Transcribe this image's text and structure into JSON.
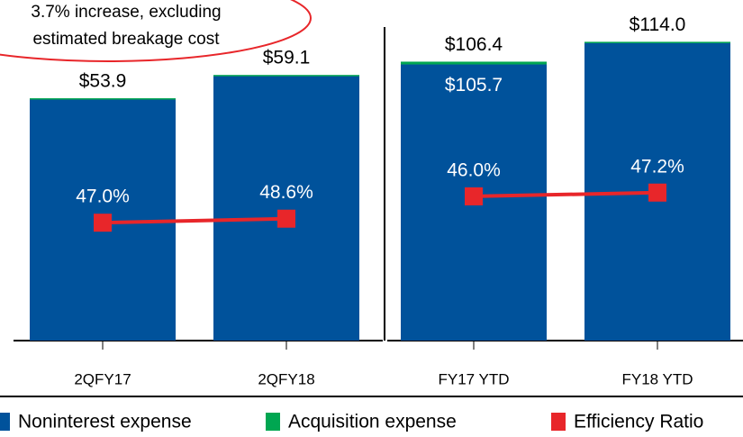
{
  "chart_data": {
    "type": "bar",
    "annotation": [
      "3.7% increase, excluding",
      "estimated breakage cost"
    ],
    "categories": [
      "2QFY17",
      "2QFY18",
      "FY17 YTD",
      "FY18 YTD"
    ],
    "series": [
      {
        "name": "Noninterest expense",
        "color": "#00529b",
        "values": [
          53.9,
          59.1,
          105.7,
          114.0
        ],
        "value_labels": [
          "$53.9",
          "$59.1",
          "$105.7",
          "$114.0"
        ]
      },
      {
        "name": "Acquisition expense",
        "color": "#00a651",
        "values": [
          0,
          0,
          0.7,
          0
        ]
      },
      {
        "name": "Efficiency Ratio",
        "color": "#e8262a",
        "type": "line",
        "axis": "y2",
        "values": [
          47.0,
          48.6,
          46.0,
          47.2
        ],
        "value_labels": [
          "47.0%",
          "48.6%",
          "46.0%",
          "47.2%"
        ]
      }
    ],
    "total_labels": [
      {
        "category": "FY17 YTD",
        "value": 106.4,
        "label": "$106.4"
      }
    ],
    "panels": [
      {
        "ylim": [
          0,
          70
        ],
        "y2lim": [
          0,
          125
        ]
      },
      {
        "ylim": [
          0,
          120
        ],
        "y2lim": [
          0,
          100
        ]
      }
    ],
    "legend": "bottom"
  }
}
